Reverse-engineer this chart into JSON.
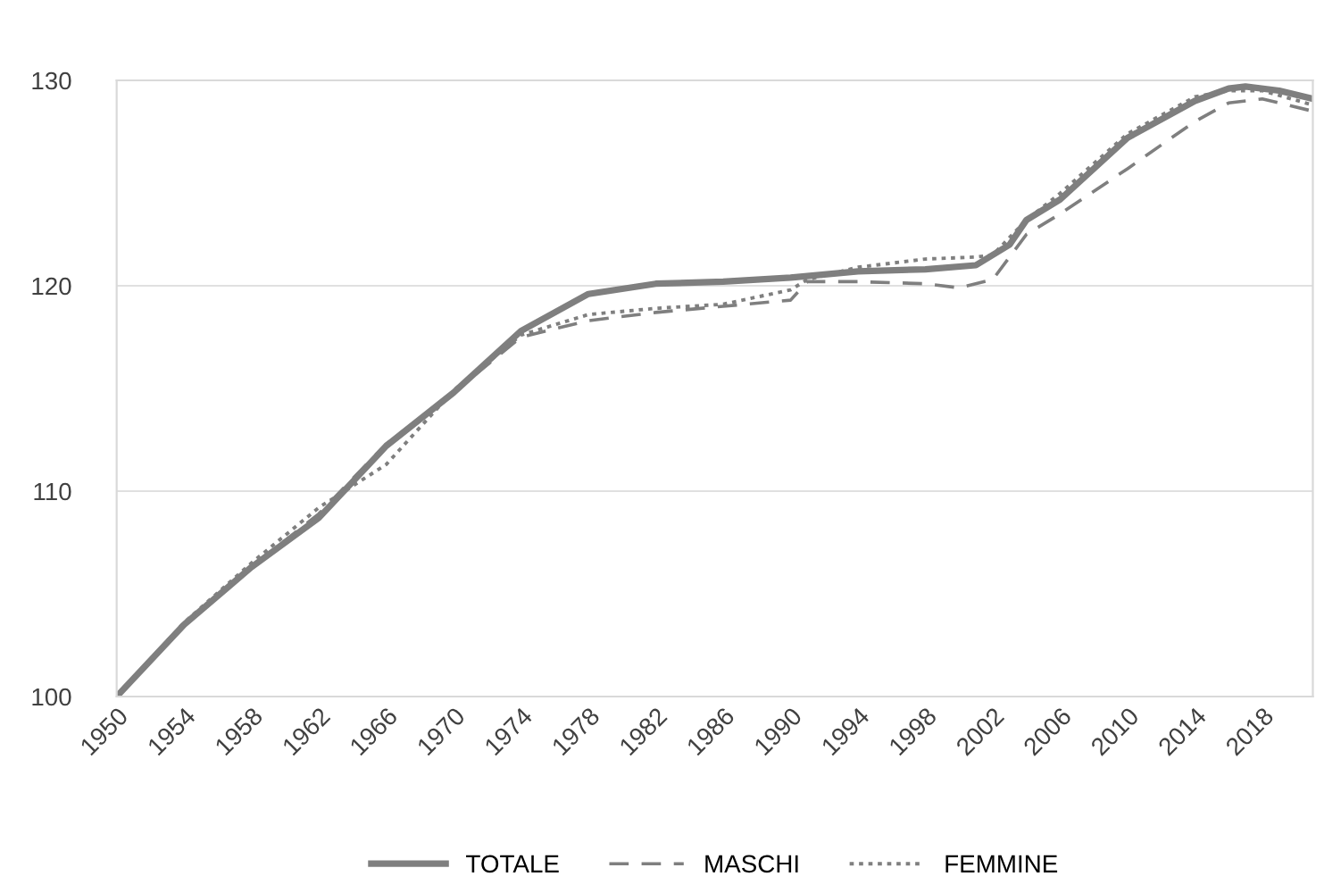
{
  "chart_data": {
    "type": "line",
    "xlim": [
      1950,
      2021
    ],
    "xticks": [
      1950,
      1954,
      1958,
      1962,
      1966,
      1970,
      1974,
      1978,
      1982,
      1986,
      1990,
      1994,
      1998,
      2002,
      2006,
      2010,
      2014,
      2018
    ],
    "ylim": [
      100,
      130
    ],
    "yticks": [
      100,
      110,
      120,
      130
    ],
    "grid": "y",
    "legend": "bottom",
    "series": [
      {
        "name": "TOTALE",
        "color": "#7f7f7f",
        "line_style": "solid",
        "x": [
          1950,
          1954,
          1958,
          1962,
          1966,
          1970,
          1974,
          1978,
          1982,
          1986,
          1990,
          1994,
          1998,
          2001,
          2003,
          2004,
          2006,
          2010,
          2014,
          2016,
          2017,
          2019,
          2021
        ],
        "values": [
          100,
          103.5,
          106.3,
          108.7,
          112.2,
          114.8,
          117.8,
          119.6,
          120.1,
          120.2,
          120.4,
          120.7,
          120.8,
          121.0,
          122.0,
          123.2,
          124.2,
          127.2,
          129.0,
          129.6,
          129.7,
          129.5,
          129.1
        ]
      },
      {
        "name": "MASCHI",
        "color": "#7f7f7f",
        "line_style": "dashed",
        "x": [
          1950,
          1954,
          1958,
          1962,
          1966,
          1970,
          1974,
          1978,
          1982,
          1986,
          1990,
          1991,
          1994,
          1998,
          2000,
          2002,
          2004,
          2006,
          2010,
          2014,
          2016,
          2018,
          2021
        ],
        "values": [
          100,
          103.5,
          106.3,
          108.9,
          112.3,
          114.8,
          117.5,
          118.3,
          118.7,
          119.0,
          119.3,
          120.2,
          120.2,
          120.1,
          119.9,
          120.3,
          122.5,
          123.5,
          125.7,
          128.0,
          128.9,
          129.1,
          128.5
        ]
      },
      {
        "name": "FEMMINE",
        "color": "#7f7f7f",
        "line_style": "dotted",
        "x": [
          1950,
          1954,
          1958,
          1962,
          1966,
          1970,
          1974,
          1978,
          1982,
          1986,
          1990,
          1991,
          1994,
          1998,
          2001,
          2002,
          2004,
          2006,
          2010,
          2014,
          2016,
          2018,
          2021
        ],
        "values": [
          100,
          103.6,
          106.5,
          109.2,
          111.3,
          114.9,
          117.6,
          118.6,
          118.9,
          119.1,
          119.8,
          120.3,
          120.9,
          121.3,
          121.4,
          121.5,
          123.2,
          124.5,
          127.4,
          129.2,
          129.5,
          129.5,
          128.8
        ]
      }
    ]
  }
}
